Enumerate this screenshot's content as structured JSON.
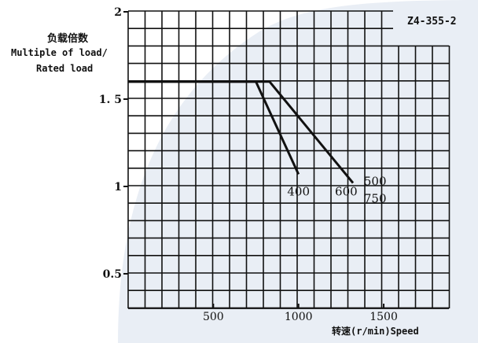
{
  "model": "Z4-355-2",
  "ylabel_cn": "负载倍数",
  "ylabel_en_1": "Multiple of load/",
  "ylabel_en_2": "Rated load",
  "xlabel": "转速(r/min)Speed",
  "colors": {
    "grid": "#111111",
    "line": "#111111",
    "background_shape": "#e9eef5"
  },
  "chart_data": {
    "type": "line",
    "title": "",
    "xlabel": "转速(r/min)Speed",
    "ylabel": "负载倍数 Multiple of load/Rated load",
    "xlim": [
      0,
      1700
    ],
    "ylim": [
      0.2,
      2.0
    ],
    "x_ticks": [
      500,
      1000,
      1500
    ],
    "x_tick_labels": [
      "500",
      "1000",
      "1500"
    ],
    "y_ticks": [
      0.5,
      1,
      1.5,
      2
    ],
    "y_tick_labels": [
      "0.5",
      "1",
      "1. 5",
      "2"
    ],
    "grid": true,
    "series": [
      {
        "name": "400",
        "x": [
          0,
          750,
          1000
        ],
        "y": [
          1.6,
          1.6,
          1.07
        ]
      },
      {
        "name": "600",
        "x": [
          0,
          830,
          1320
        ],
        "y": [
          1.6,
          1.6,
          1.02
        ]
      }
    ],
    "annotations": [
      {
        "text": "400",
        "x": 1000,
        "y": 0.97
      },
      {
        "text": "600",
        "x": 1280,
        "y": 0.97
      },
      {
        "text": "500",
        "x": 1450,
        "y": 1.03
      },
      {
        "text": "750",
        "x": 1450,
        "y": 0.93
      }
    ]
  }
}
